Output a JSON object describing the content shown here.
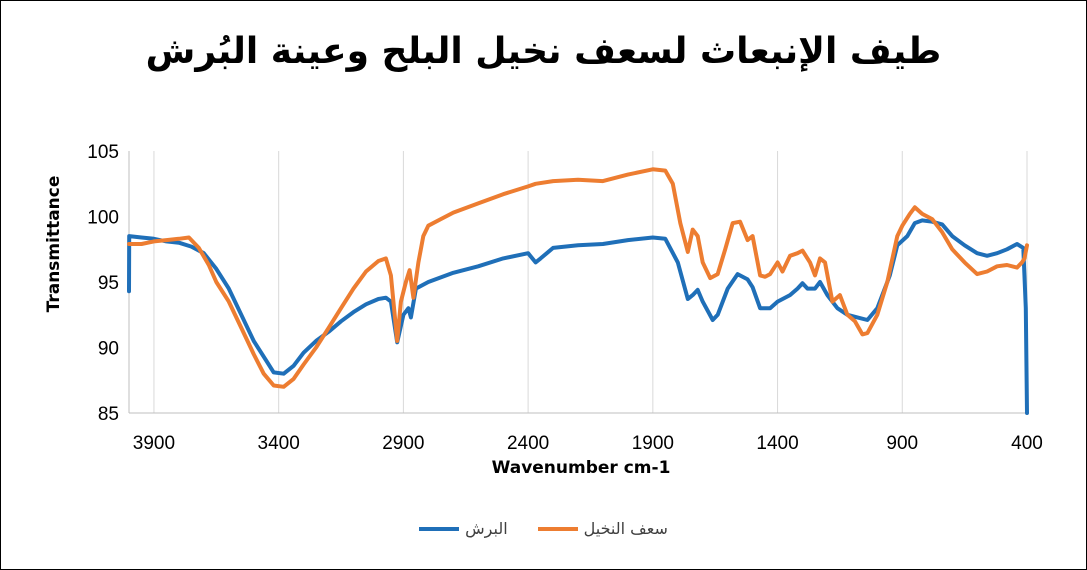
{
  "chart_data": {
    "type": "line",
    "title": "طيف الإنبعاث لسعف نخيل البلح وعينة البُرش",
    "xlabel": "Wavenumber cm-1",
    "ylabel": "Transmittance",
    "xlim": [
      4000,
      400
    ],
    "x_reversed": true,
    "ylim": [
      85,
      105
    ],
    "x_ticks": [
      3900,
      3400,
      2900,
      2400,
      1900,
      1400,
      900,
      400
    ],
    "y_ticks": [
      85,
      90,
      95,
      100,
      105
    ],
    "grid": "vertical",
    "legend_position": "bottom",
    "series": [
      {
        "name": "البرش",
        "color": "#1f6fb8",
        "points": [
          [
            4000,
            94.3
          ],
          [
            3999,
            98.5
          ],
          [
            3950,
            98.4
          ],
          [
            3900,
            98.3
          ],
          [
            3850,
            98.1
          ],
          [
            3800,
            98.0
          ],
          [
            3750,
            97.7
          ],
          [
            3700,
            97.2
          ],
          [
            3650,
            96.0
          ],
          [
            3600,
            94.5
          ],
          [
            3550,
            92.5
          ],
          [
            3500,
            90.5
          ],
          [
            3450,
            89.0
          ],
          [
            3420,
            88.1
          ],
          [
            3380,
            88.0
          ],
          [
            3340,
            88.6
          ],
          [
            3300,
            89.6
          ],
          [
            3250,
            90.5
          ],
          [
            3200,
            91.2
          ],
          [
            3150,
            92.0
          ],
          [
            3100,
            92.7
          ],
          [
            3050,
            93.3
          ],
          [
            3000,
            93.7
          ],
          [
            2970,
            93.8
          ],
          [
            2950,
            93.5
          ],
          [
            2925,
            90.4
          ],
          [
            2900,
            92.5
          ],
          [
            2880,
            93.0
          ],
          [
            2870,
            92.3
          ],
          [
            2850,
            94.5
          ],
          [
            2800,
            95.0
          ],
          [
            2700,
            95.7
          ],
          [
            2600,
            96.2
          ],
          [
            2500,
            96.8
          ],
          [
            2400,
            97.2
          ],
          [
            2370,
            96.5
          ],
          [
            2350,
            96.8
          ],
          [
            2300,
            97.6
          ],
          [
            2200,
            97.8
          ],
          [
            2100,
            97.9
          ],
          [
            2000,
            98.2
          ],
          [
            1900,
            98.4
          ],
          [
            1850,
            98.3
          ],
          [
            1800,
            96.5
          ],
          [
            1760,
            93.7
          ],
          [
            1740,
            94.0
          ],
          [
            1720,
            94.4
          ],
          [
            1700,
            93.5
          ],
          [
            1660,
            92.1
          ],
          [
            1640,
            92.5
          ],
          [
            1600,
            94.5
          ],
          [
            1560,
            95.6
          ],
          [
            1520,
            95.2
          ],
          [
            1500,
            94.6
          ],
          [
            1470,
            93.0
          ],
          [
            1430,
            93.0
          ],
          [
            1400,
            93.5
          ],
          [
            1350,
            94.0
          ],
          [
            1320,
            94.5
          ],
          [
            1300,
            94.9
          ],
          [
            1280,
            94.5
          ],
          [
            1250,
            94.5
          ],
          [
            1230,
            95.0
          ],
          [
            1200,
            94.0
          ],
          [
            1160,
            93.0
          ],
          [
            1120,
            92.5
          ],
          [
            1080,
            92.3
          ],
          [
            1040,
            92.1
          ],
          [
            1000,
            93.0
          ],
          [
            950,
            95.5
          ],
          [
            920,
            97.8
          ],
          [
            880,
            98.5
          ],
          [
            850,
            99.5
          ],
          [
            820,
            99.7
          ],
          [
            780,
            99.6
          ],
          [
            740,
            99.4
          ],
          [
            700,
            98.5
          ],
          [
            650,
            97.8
          ],
          [
            600,
            97.2
          ],
          [
            560,
            97.0
          ],
          [
            520,
            97.2
          ],
          [
            480,
            97.5
          ],
          [
            440,
            97.9
          ],
          [
            415,
            97.6
          ],
          [
            405,
            93.0
          ],
          [
            400,
            85.0
          ]
        ]
      },
      {
        "name": "سعف النخيل",
        "color": "#ed7d31",
        "points": [
          [
            4000,
            97.9
          ],
          [
            3950,
            97.9
          ],
          [
            3900,
            98.1
          ],
          [
            3850,
            98.2
          ],
          [
            3800,
            98.3
          ],
          [
            3760,
            98.4
          ],
          [
            3720,
            97.6
          ],
          [
            3680,
            96.3
          ],
          [
            3650,
            95.0
          ],
          [
            3600,
            93.5
          ],
          [
            3550,
            91.5
          ],
          [
            3500,
            89.5
          ],
          [
            3460,
            88.0
          ],
          [
            3420,
            87.1
          ],
          [
            3380,
            87.0
          ],
          [
            3340,
            87.6
          ],
          [
            3300,
            88.7
          ],
          [
            3250,
            90.0
          ],
          [
            3200,
            91.5
          ],
          [
            3150,
            93.0
          ],
          [
            3100,
            94.5
          ],
          [
            3050,
            95.8
          ],
          [
            3000,
            96.6
          ],
          [
            2970,
            96.8
          ],
          [
            2950,
            95.5
          ],
          [
            2925,
            90.5
          ],
          [
            2910,
            93.5
          ],
          [
            2890,
            95.0
          ],
          [
            2875,
            95.9
          ],
          [
            2860,
            93.8
          ],
          [
            2840,
            96.5
          ],
          [
            2820,
            98.5
          ],
          [
            2800,
            99.3
          ],
          [
            2750,
            99.8
          ],
          [
            2700,
            100.3
          ],
          [
            2600,
            101.0
          ],
          [
            2500,
            101.7
          ],
          [
            2400,
            102.3
          ],
          [
            2370,
            102.5
          ],
          [
            2300,
            102.7
          ],
          [
            2200,
            102.8
          ],
          [
            2100,
            102.7
          ],
          [
            2000,
            103.2
          ],
          [
            1900,
            103.6
          ],
          [
            1850,
            103.5
          ],
          [
            1820,
            102.5
          ],
          [
            1790,
            99.5
          ],
          [
            1760,
            97.3
          ],
          [
            1740,
            99.0
          ],
          [
            1720,
            98.5
          ],
          [
            1700,
            96.5
          ],
          [
            1670,
            95.3
          ],
          [
            1640,
            95.6
          ],
          [
            1610,
            97.5
          ],
          [
            1580,
            99.5
          ],
          [
            1550,
            99.6
          ],
          [
            1520,
            98.2
          ],
          [
            1500,
            98.5
          ],
          [
            1470,
            95.5
          ],
          [
            1450,
            95.4
          ],
          [
            1430,
            95.6
          ],
          [
            1400,
            96.5
          ],
          [
            1380,
            95.8
          ],
          [
            1350,
            97.0
          ],
          [
            1320,
            97.2
          ],
          [
            1300,
            97.4
          ],
          [
            1270,
            96.5
          ],
          [
            1250,
            95.5
          ],
          [
            1230,
            96.8
          ],
          [
            1210,
            96.5
          ],
          [
            1180,
            93.5
          ],
          [
            1150,
            94.0
          ],
          [
            1120,
            92.5
          ],
          [
            1090,
            92.0
          ],
          [
            1060,
            91.0
          ],
          [
            1040,
            91.1
          ],
          [
            1000,
            92.5
          ],
          [
            960,
            95.0
          ],
          [
            920,
            98.5
          ],
          [
            900,
            99.3
          ],
          [
            870,
            100.2
          ],
          [
            850,
            100.7
          ],
          [
            820,
            100.2
          ],
          [
            780,
            99.8
          ],
          [
            740,
            98.8
          ],
          [
            700,
            97.5
          ],
          [
            650,
            96.5
          ],
          [
            600,
            95.6
          ],
          [
            560,
            95.8
          ],
          [
            520,
            96.2
          ],
          [
            480,
            96.3
          ],
          [
            440,
            96.1
          ],
          [
            420,
            96.5
          ],
          [
            410,
            96.8
          ],
          [
            400,
            97.8
          ]
        ]
      }
    ]
  }
}
